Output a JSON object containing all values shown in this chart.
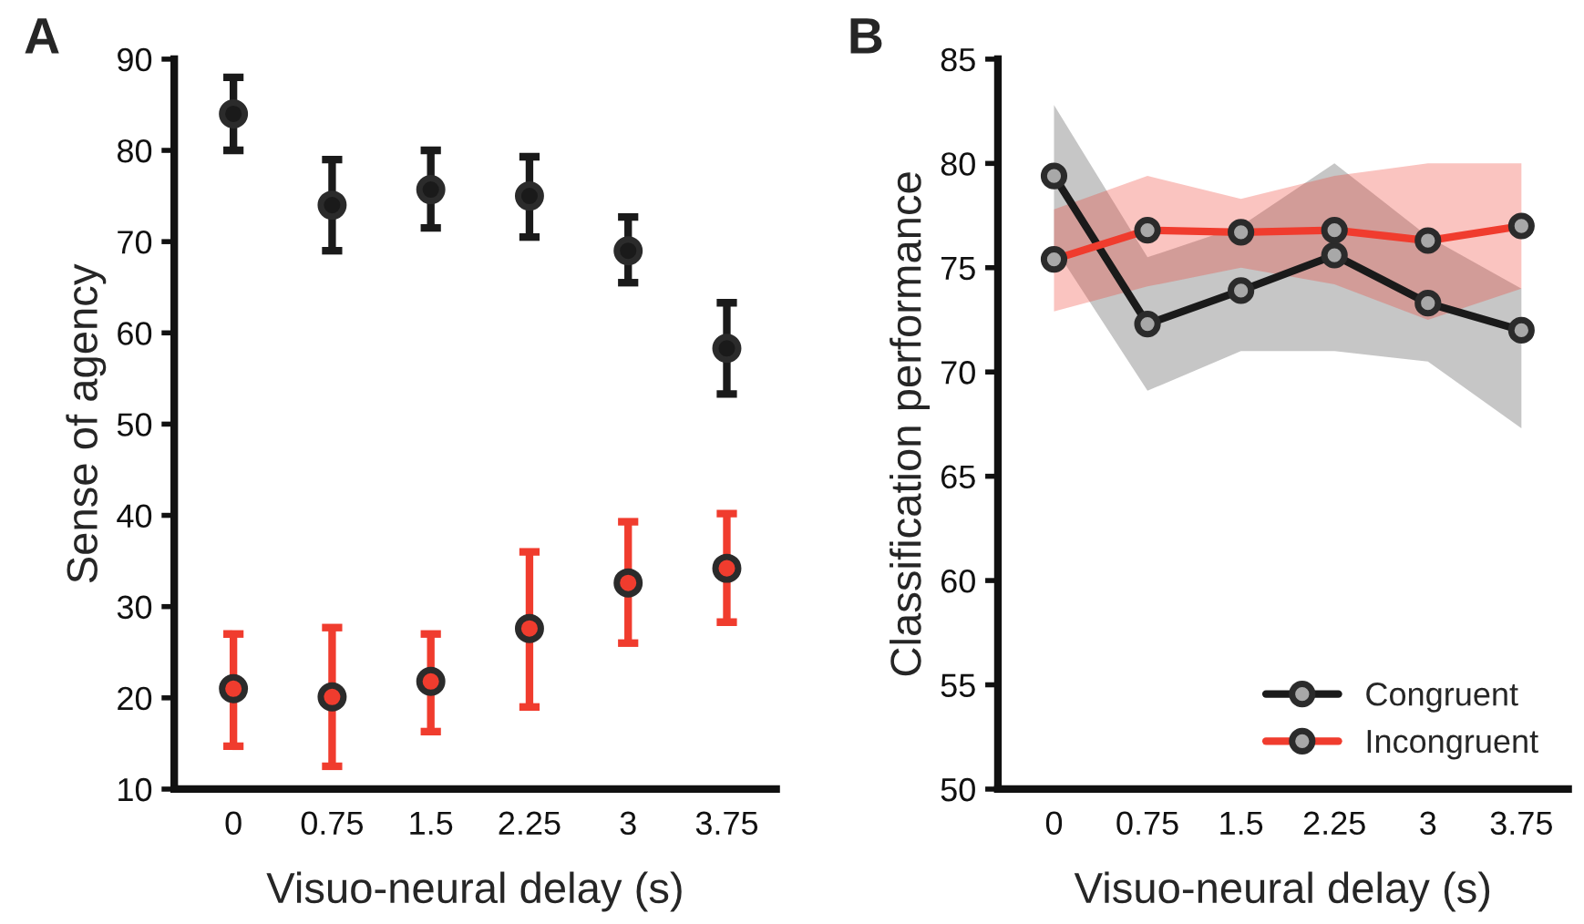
{
  "chart_data": [
    {
      "type": "scatter",
      "annotations": [
        "A"
      ],
      "xlabel": "Visuo-neural delay (s)",
      "ylabel": "Sense of agency",
      "categories": [
        "0",
        "0.75",
        "1.5",
        "2.25",
        "3",
        "3.75"
      ],
      "ylim": [
        10,
        90
      ],
      "yticks": [
        10,
        20,
        30,
        40,
        50,
        60,
        70,
        80,
        90
      ],
      "grid": false,
      "legend": false,
      "marker": "circle",
      "series": [
        {
          "color": "#1a1a1a",
          "values": [
            84,
            74,
            75.7,
            75,
            69,
            58.3
          ],
          "errors": [
            [
              80,
              88
            ],
            [
              69,
              79
            ],
            [
              71.5,
              80
            ],
            [
              70.5,
              79.3
            ],
            [
              65.5,
              72.7
            ],
            [
              53.3,
              63.3
            ]
          ]
        },
        {
          "color": "#f03c2e",
          "values": [
            21,
            20.1,
            21.8,
            27.6,
            32.6,
            34.2
          ],
          "errors": [
            [
              14.7,
              27
            ],
            [
              12.5,
              27.7
            ],
            [
              16.3,
              27
            ],
            [
              19,
              36
            ],
            [
              26,
              39.3
            ],
            [
              28.3,
              40.2
            ]
          ]
        }
      ]
    },
    {
      "type": "line",
      "annotations": [
        "B"
      ],
      "xlabel": "Visuo-neural delay (s)",
      "ylabel": "Classification performance",
      "categories": [
        "0",
        "0.75",
        "1.5",
        "2.25",
        "3",
        "3.75"
      ],
      "ylim": [
        50,
        85
      ],
      "yticks": [
        50,
        55,
        60,
        65,
        70,
        75,
        80,
        85
      ],
      "grid": false,
      "legend": "bottom right",
      "marker": "circle",
      "line_style": "solid",
      "series": [
        {
          "name": "Congruent",
          "color": "#1a1a1a",
          "values": [
            79.4,
            72.3,
            73.9,
            75.6,
            73.3,
            72.0
          ],
          "lower": [
            76,
            69.1,
            71,
            71,
            70.5,
            67.3
          ],
          "upper": [
            82.8,
            75.5,
            77,
            80,
            76.5,
            74
          ]
        },
        {
          "name": "Incongruent",
          "color": "#f03c2e",
          "values": [
            75.4,
            76.8,
            76.7,
            76.8,
            76.3,
            77.0
          ],
          "lower": [
            72.9,
            74.1,
            75,
            74.2,
            72.5,
            74
          ],
          "upper": [
            77.8,
            79.4,
            78.3,
            79.4,
            80,
            80
          ]
        }
      ]
    }
  ]
}
